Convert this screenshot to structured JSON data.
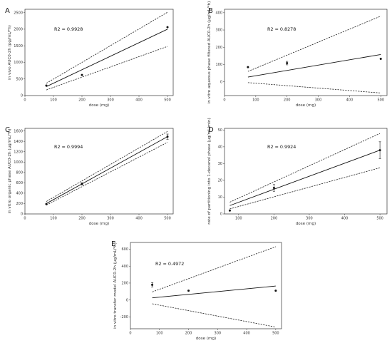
{
  "figure": {
    "panels": [
      {
        "id": "A",
        "letter": "A",
        "r2_text": "R2 = 0.9928",
        "xlabel": "dose (mg)",
        "ylabel": "in vivo AUC0-2h (pg/mL/*h)",
        "xticks": [
          0,
          100,
          200,
          300,
          400,
          500
        ],
        "yticks": [
          0,
          500,
          1000,
          1500,
          2000,
          2500
        ]
      },
      {
        "id": "B",
        "letter": "B",
        "r2_text": "R2 = 0.8278",
        "xlabel": "dose (mg)",
        "ylabel": "in vitro aqueous phase filtered AUC0-2h (μg/mL/*h)",
        "xticks": [
          0,
          100,
          200,
          300,
          400,
          500
        ],
        "yticks": [
          0,
          100,
          200,
          300,
          400
        ]
      },
      {
        "id": "C",
        "letter": "C",
        "r2_text": "R2 = 0.9994",
        "xlabel": "dose (mg)",
        "ylabel": "in vitro organic phase AUC0-2h (μg/mL/*h)",
        "xticks": [
          0,
          100,
          200,
          300,
          400,
          500
        ],
        "yticks": [
          0,
          200,
          400,
          600,
          800,
          1000,
          1200,
          1400,
          1600
        ]
      },
      {
        "id": "D",
        "letter": "D",
        "r2_text": "R2 = 0.9924",
        "xlabel": "dose (mg)",
        "ylabel": "rate of partitioning into 1-decanol phase (μg/mL/min)",
        "xticks": [
          100,
          200,
          300,
          400,
          500
        ],
        "yticks": [
          0,
          10,
          20,
          30,
          40,
          50
        ]
      },
      {
        "id": "E",
        "letter": "E",
        "r2_text": "R2 = 0.4972",
        "xlabel": "dose (mg)",
        "ylabel": "in vitro transfer model AUC0-2h (μg/mL/*h)",
        "xticks": [
          0,
          100,
          200,
          300,
          400,
          500
        ],
        "yticks": [
          -200,
          0,
          200,
          400,
          600
        ]
      }
    ]
  },
  "chart_data": [
    {
      "type": "scatter",
      "panel": "A",
      "title": "",
      "xlabel": "dose (mg)",
      "ylabel": "in vivo AUC0-2h (pg/mL/*h)",
      "xlim": [
        0,
        520
      ],
      "ylim": [
        0,
        2600
      ],
      "points": [
        {
          "x": 75,
          "y": 300,
          "err": 0
        },
        {
          "x": 200,
          "y": 620,
          "err": 0
        },
        {
          "x": 500,
          "y": 2060,
          "err": 0
        }
      ],
      "fit": {
        "x": [
          75,
          500
        ],
        "y": [
          270,
          2000
        ]
      },
      "ci_upper": {
        "x": [
          75,
          500
        ],
        "y": [
          370,
          2510
        ]
      },
      "ci_lower": {
        "x": [
          75,
          500
        ],
        "y": [
          170,
          1480
        ]
      },
      "r2": 0.9928
    },
    {
      "type": "scatter",
      "panel": "B",
      "title": "",
      "xlabel": "dose (mg)",
      "ylabel": "in vitro aqueous phase filtered AUC0-2h (μg/mL/*h)",
      "xlim": [
        0,
        520
      ],
      "ylim": [
        -80,
        420
      ],
      "points": [
        {
          "x": 75,
          "y": 85,
          "err": 0
        },
        {
          "x": 200,
          "y": 108,
          "err": 10
        },
        {
          "x": 500,
          "y": 133,
          "err": 0
        }
      ],
      "fit": {
        "x": [
          75,
          500
        ],
        "y": [
          27,
          158
        ]
      },
      "ci_upper": {
        "x": [
          75,
          500
        ],
        "y": [
          60,
          380
        ]
      },
      "ci_lower": {
        "x": [
          75,
          500
        ],
        "y": [
          -5,
          -65
        ]
      },
      "r2": 0.8278
    },
    {
      "type": "scatter",
      "panel": "C",
      "title": "",
      "xlabel": "dose (mg)",
      "ylabel": "in vitro organic phase AUC0-2h (μg/mL/*h)",
      "xlim": [
        0,
        520
      ],
      "ylim": [
        0,
        1650
      ],
      "points": [
        {
          "x": 75,
          "y": 190,
          "err": 0
        },
        {
          "x": 200,
          "y": 580,
          "err": 20
        },
        {
          "x": 500,
          "y": 1490,
          "err": 50
        }
      ],
      "fit": {
        "x": [
          75,
          500
        ],
        "y": [
          200,
          1490
        ]
      },
      "ci_upper": {
        "x": [
          75,
          500
        ],
        "y": [
          240,
          1590
        ]
      },
      "ci_lower": {
        "x": [
          75,
          500
        ],
        "y": [
          170,
          1380
        ]
      },
      "r2": 0.9994
    },
    {
      "type": "scatter",
      "panel": "D",
      "title": "",
      "xlabel": "dose (mg)",
      "ylabel": "rate of partitioning into 1-decanol phase (μg/mL/min)",
      "xlim": [
        60,
        520
      ],
      "ylim": [
        0,
        51
      ],
      "points": [
        {
          "x": 75,
          "y": 2,
          "err": 0
        },
        {
          "x": 200,
          "y": 15.5,
          "err": 2
        },
        {
          "x": 500,
          "y": 38,
          "err": 5
        }
      ],
      "fit": {
        "x": [
          75,
          500
        ],
        "y": [
          5,
          38
        ]
      },
      "ci_upper": {
        "x": [
          75,
          500
        ],
        "y": [
          7,
          48
        ]
      },
      "ci_lower": {
        "x": [
          75,
          500
        ],
        "y": [
          3,
          27.5
        ]
      },
      "r2": 0.9924
    },
    {
      "type": "scatter",
      "panel": "E",
      "title": "",
      "xlabel": "dose (mg)",
      "ylabel": "in vitro transfer model AUC0-2h (μg/mL/*h)",
      "xlim": [
        0,
        520
      ],
      "ylim": [
        -340,
        680
      ],
      "points": [
        {
          "x": 75,
          "y": 180,
          "err": 25
        },
        {
          "x": 200,
          "y": 110,
          "err": 0
        },
        {
          "x": 500,
          "y": 110,
          "err": 0
        }
      ],
      "fit": {
        "x": [
          75,
          500
        ],
        "y": [
          25,
          165
        ]
      },
      "ci_upper": {
        "x": [
          75,
          500
        ],
        "y": [
          95,
          630
        ]
      },
      "ci_lower": {
        "x": [
          75,
          500
        ],
        "y": [
          -45,
          -320
        ]
      },
      "r2": 0.4972
    }
  ]
}
